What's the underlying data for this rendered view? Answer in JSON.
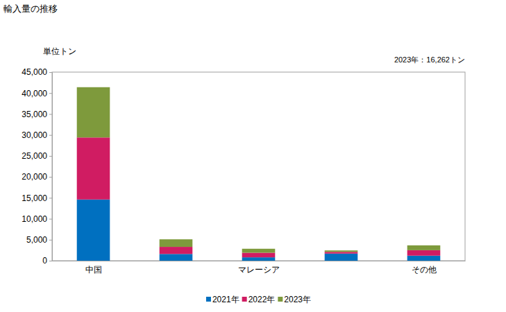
{
  "chart_data": {
    "type": "bar",
    "stacked": true,
    "title": "輸入量の推移",
    "ylabel": "単位トン",
    "annotations": [
      "2023年：16,262トン"
    ],
    "categories": [
      "中国",
      null,
      "マレーシア",
      null,
      "その他"
    ],
    "series": [
      {
        "name": "2021年",
        "color": "#0070c0",
        "values": [
          14600,
          1600,
          800,
          1700,
          1200
        ]
      },
      {
        "name": "2022年",
        "color": "#d01c62",
        "values": [
          14800,
          1700,
          1100,
          400,
          1300
        ]
      },
      {
        "name": "2023年",
        "color": "#7e9a3c",
        "values": [
          12000,
          1800,
          950,
          350,
          1162
        ]
      }
    ],
    "ylim": [
      0,
      45000
    ],
    "yticks": [
      0,
      {
        "value": 5000,
        "label": "5,000"
      },
      {
        "value": 10000,
        "label": "10,000"
      },
      {
        "value": 15000,
        "label": "15,000"
      },
      {
        "value": 20000,
        "label": "20,000"
      },
      {
        "value": 25000,
        "label": "25,000"
      },
      {
        "value": 30000,
        "label": "30,000"
      },
      {
        "value": 35000,
        "label": "35,000"
      },
      {
        "value": 40000,
        "label": "40,000"
      },
      {
        "value": 45000,
        "label": "45,000"
      }
    ],
    "grid": false,
    "legend": "bottom"
  }
}
